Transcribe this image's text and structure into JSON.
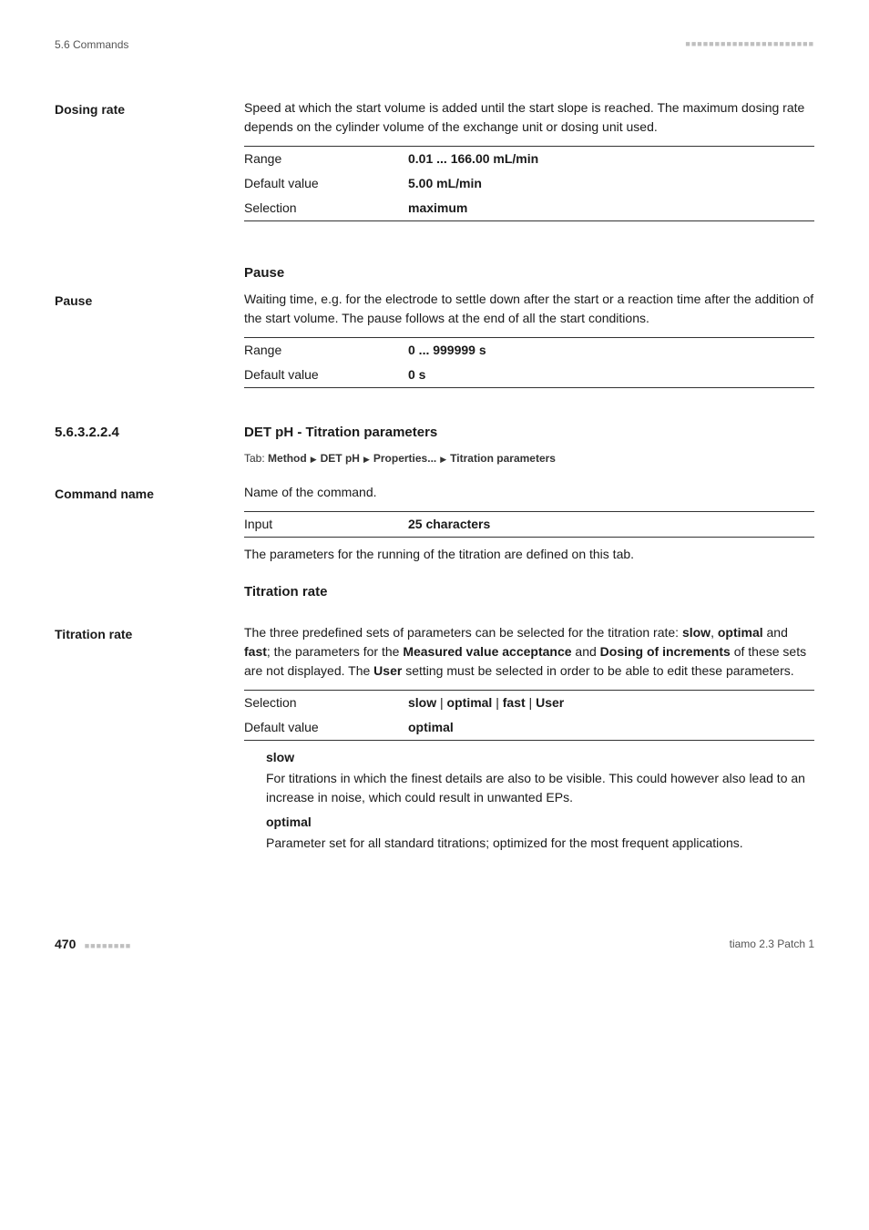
{
  "header": {
    "left": "5.6 Commands"
  },
  "dosingRate": {
    "label": "Dosing rate",
    "desc": "Speed at which the start volume is added until the start slope is reached. The maximum dosing rate depends on the cylinder volume of the exchange unit or dosing unit used.",
    "rows": {
      "rangeKey": "Range",
      "rangeVal": "0.01 ... 166.00 mL/min",
      "defaultKey": "Default value",
      "defaultVal": "5.00 mL/min",
      "selectionKey": "Selection",
      "selectionVal": "maximum"
    }
  },
  "pauseTitle": "Pause",
  "pause": {
    "label": "Pause",
    "desc": "Waiting time, e.g. for the electrode to settle down after the start or a reaction time after the addition of the start volume. The pause follows at the end of all the start conditions.",
    "rows": {
      "rangeKey": "Range",
      "rangeVal": "0 ... 999999 s",
      "defaultKey": "Default value",
      "defaultVal": "0 s"
    }
  },
  "section": {
    "number": "5.6.3.2.2.4",
    "title": "DET pH - Titration parameters",
    "tabLabel": "Tab:",
    "tabSteps": [
      "Method",
      "DET pH",
      "Properties...",
      "Titration parameters"
    ]
  },
  "commandName": {
    "label": "Command name",
    "desc": "Name of the command.",
    "rows": {
      "inputKey": "Input",
      "inputVal": "25 characters"
    },
    "after": "The parameters for the running of the titration are defined on this tab."
  },
  "titrationRateTitle": "Titration rate",
  "titrationRate": {
    "label": "Titration rate",
    "descParts": {
      "p1": "The three predefined sets of parameters can be selected for the titration rate: ",
      "slow": "slow",
      "c1": ", ",
      "optimal": "optimal",
      "c2": " and ",
      "fast": "fast",
      "p2": "; the parameters for the ",
      "mv": "Measured value acceptance",
      "c3": " and ",
      "di": "Dosing of increments",
      "p3": " of these sets are not displayed. The ",
      "user": "User",
      "p4": " setting must be selected in order to be able to edit these parameters."
    },
    "rows": {
      "selectionKey": "Selection",
      "selectionVals": {
        "slow": "slow",
        "optimal": "optimal",
        "fast": "fast",
        "user": "User"
      },
      "sep": " | ",
      "defaultKey": "Default value",
      "defaultVal": "optimal"
    },
    "slowTerm": "slow",
    "slowDesc": "For titrations in which the finest details are also to be visible. This could however also lead to an increase in noise, which could result in unwanted EPs.",
    "optimalTerm": "optimal",
    "optimalDesc": "Parameter set for all standard titrations; optimized for the most frequent applications."
  },
  "footer": {
    "page": "470",
    "right": "tiamo 2.3 Patch 1"
  }
}
